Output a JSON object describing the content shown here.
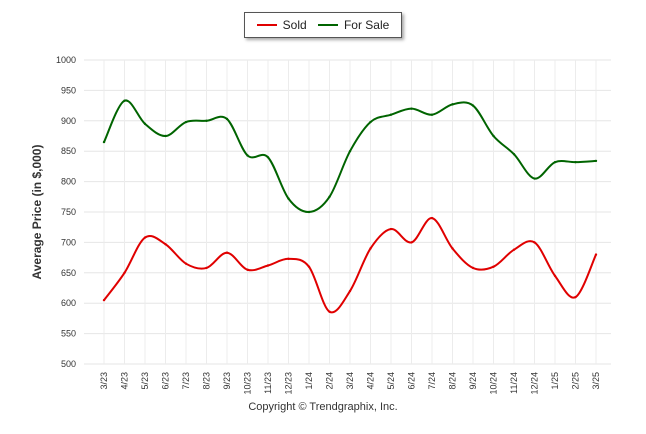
{
  "chart_data": {
    "type": "line",
    "ylabel": "Average Price (in $,000)",
    "ylim": [
      500,
      1000
    ],
    "yticks": [
      500,
      550,
      600,
      650,
      700,
      750,
      800,
      850,
      900,
      950,
      1000
    ],
    "grid": true,
    "legend_placement": "top-center",
    "categories": [
      "3/23",
      "4/23",
      "5/23",
      "6/23",
      "7/23",
      "8/23",
      "9/23",
      "10/23",
      "11/23",
      "12/23",
      "1/24",
      "2/24",
      "3/24",
      "4/24",
      "5/24",
      "6/24",
      "7/24",
      "8/24",
      "9/24",
      "10/24",
      "11/24",
      "12/24",
      "1/25",
      "2/25",
      "3/25"
    ],
    "series": [
      {
        "name": "Sold",
        "color": "#e00000",
        "values": [
          605,
          650,
          708,
          697,
          665,
          658,
          683,
          655,
          662,
          673,
          660,
          586,
          620,
          690,
          722,
          700,
          740,
          690,
          658,
          660,
          688,
          700,
          645,
          610,
          680
        ]
      },
      {
        "name": "For Sale",
        "color": "#006400",
        "values": [
          865,
          933,
          895,
          875,
          898,
          900,
          903,
          843,
          840,
          772,
          750,
          775,
          850,
          898,
          910,
          920,
          910,
          927,
          925,
          875,
          845,
          805,
          832,
          832,
          834
        ]
      }
    ]
  },
  "footer": {
    "copyright": "Copyright © Trendgraphix, Inc."
  }
}
